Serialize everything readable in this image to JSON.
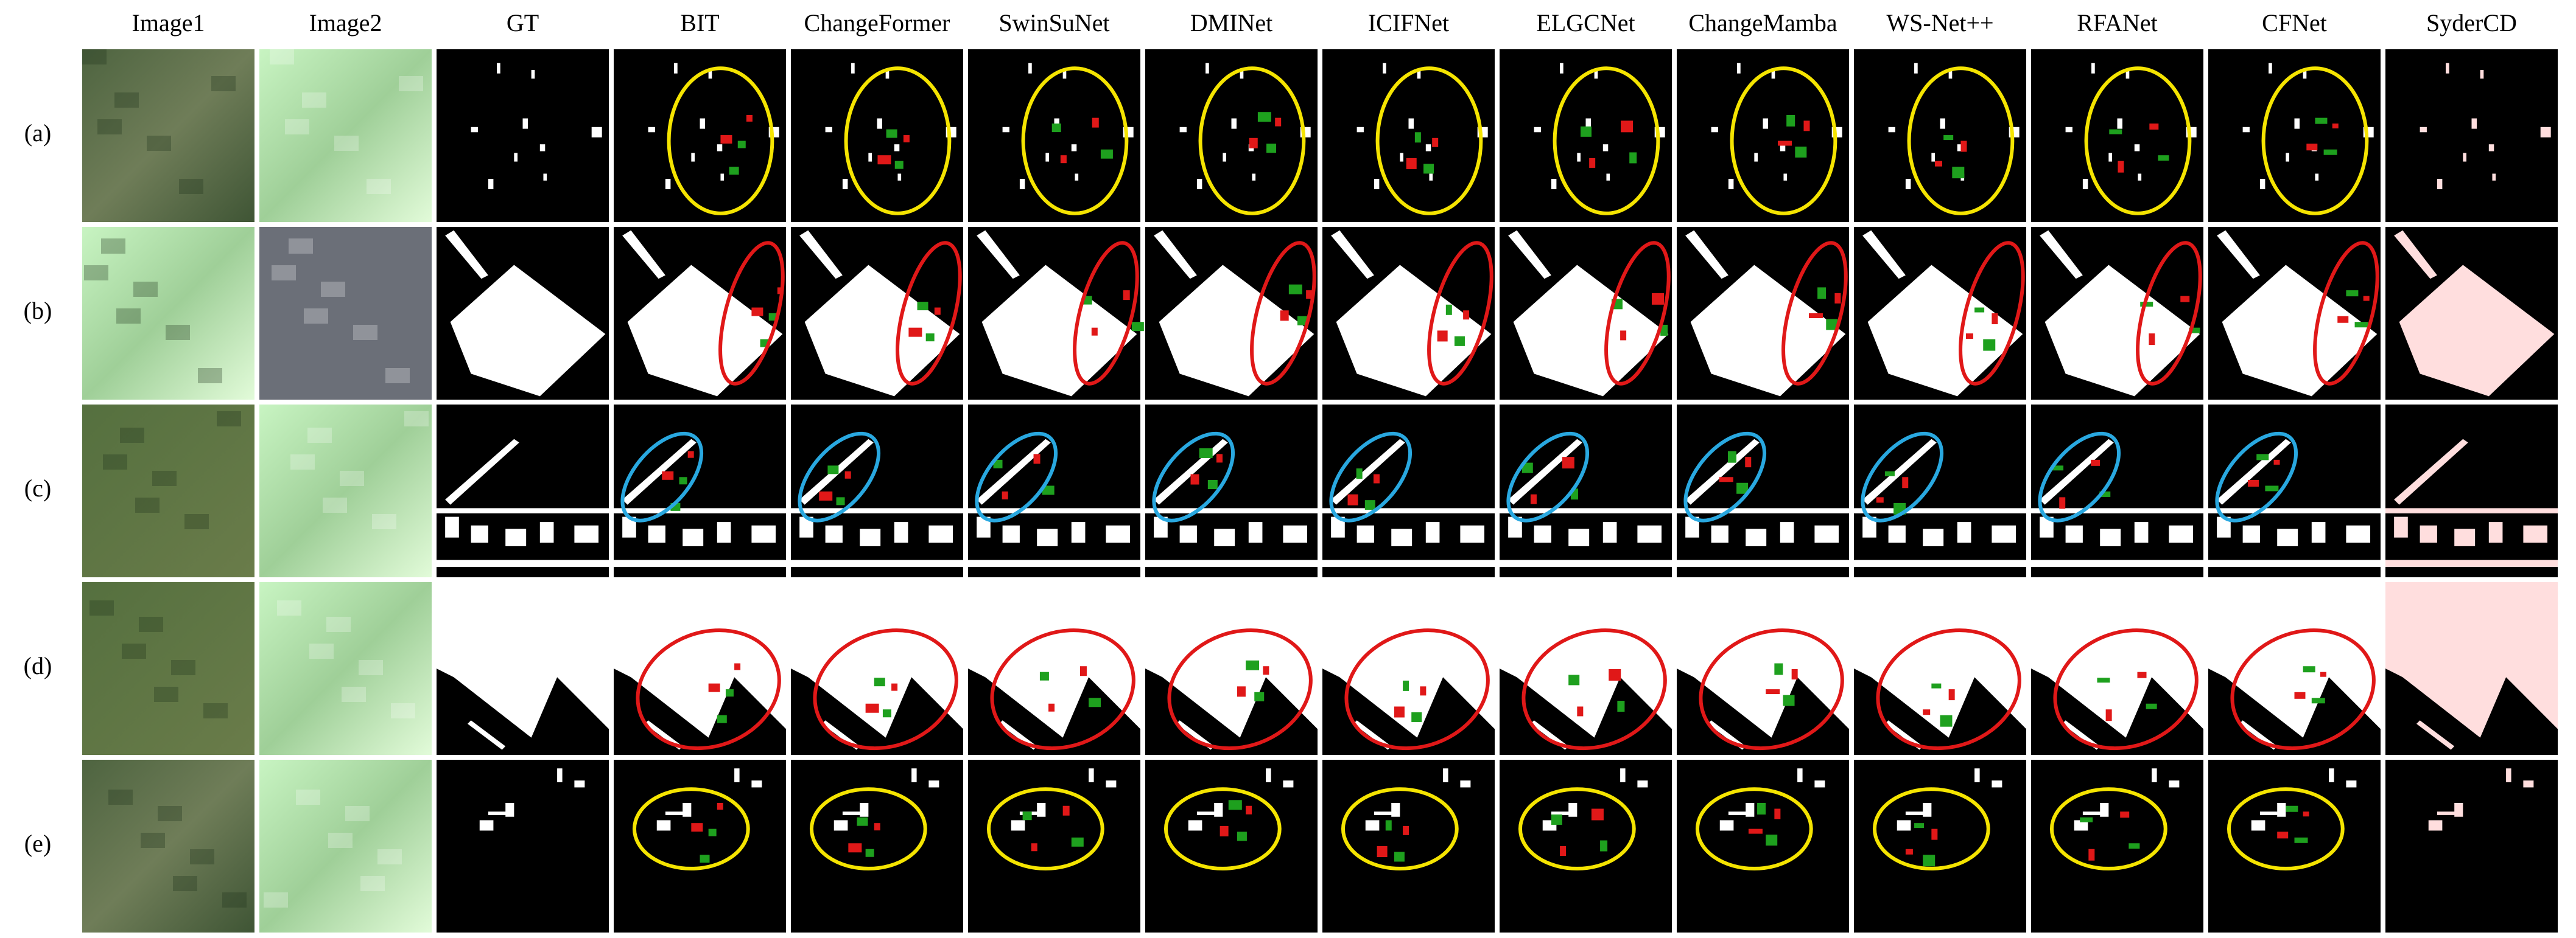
{
  "columns": [
    "Image1",
    "Image2",
    "GT",
    "BIT",
    "ChangeFormer",
    "SwinSuNet",
    "DMINet",
    "ICIFNet",
    "ELGCNet",
    "ChangeMamba",
    "WS-Net++",
    "RFANet",
    "CFNet",
    "SyderCD"
  ],
  "rows": [
    "(a)",
    "(b)",
    "(c)",
    "(d)",
    "(e)"
  ]
}
